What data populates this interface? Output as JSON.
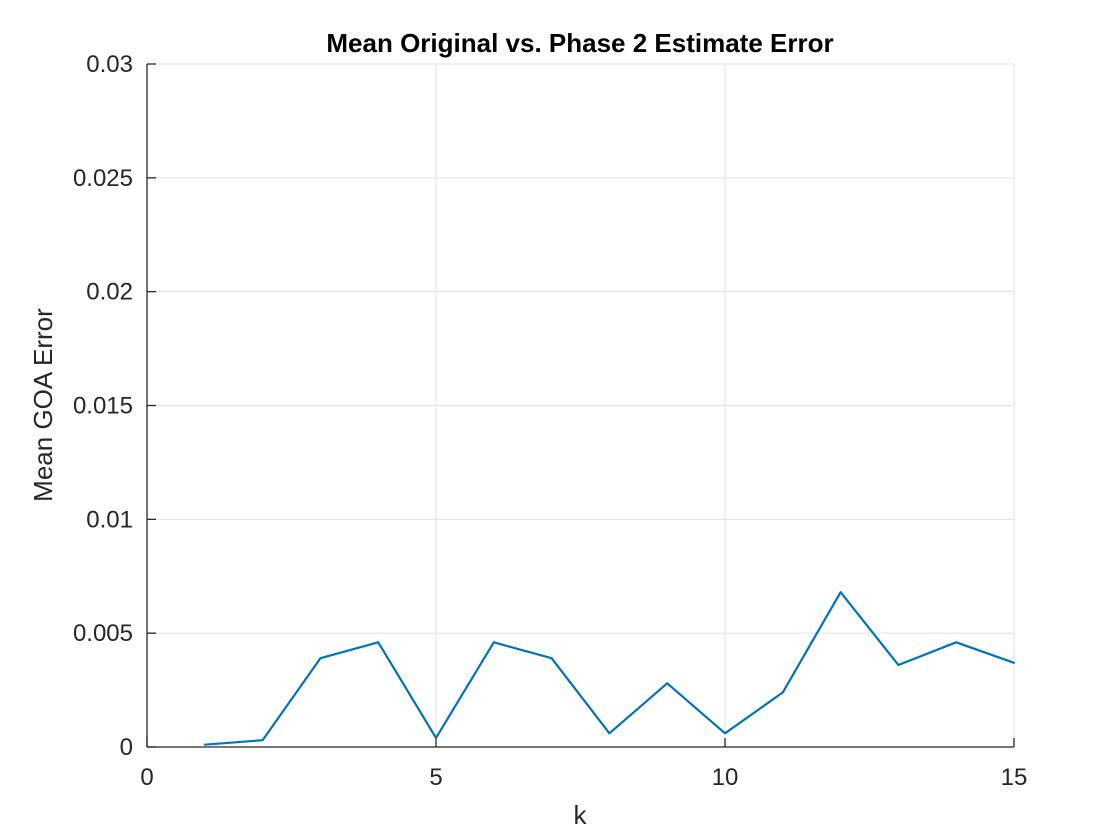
{
  "chart_data": {
    "type": "line",
    "title": "Mean Original vs. Phase 2 Estimate Error",
    "xlabel": "k",
    "ylabel": "Mean GOA Error",
    "xlim": [
      0,
      15
    ],
    "ylim": [
      0,
      0.03
    ],
    "xticks": [
      0,
      5,
      10,
      15
    ],
    "xtick_labels": [
      "0",
      "5",
      "10",
      "15"
    ],
    "yticks": [
      0,
      0.005,
      0.01,
      0.015,
      0.02,
      0.025,
      0.03
    ],
    "ytick_labels": [
      "0",
      "0.005",
      "0.01",
      "0.015",
      "0.02",
      "0.025",
      "0.03"
    ],
    "grid": true,
    "series": [
      {
        "color": "#0072BD",
        "x": [
          1,
          2,
          3,
          4,
          5,
          6,
          7,
          8,
          9,
          10,
          11,
          12,
          13,
          14,
          15
        ],
        "y": [
          0.0001,
          0.0003,
          0.0039,
          0.0046,
          0.0004,
          0.0046,
          0.0039,
          0.0006,
          0.0028,
          0.0006,
          0.0024,
          0.0068,
          0.0036,
          0.0046,
          0.0037
        ]
      }
    ]
  }
}
